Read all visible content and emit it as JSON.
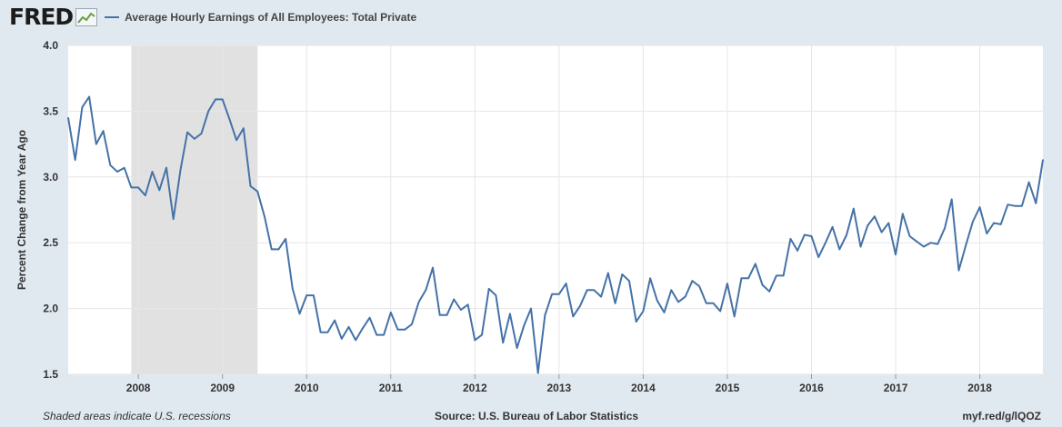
{
  "header": {
    "logo_text": "FRED",
    "legend_label": "Average Hourly Earnings of All Employees: Total Private"
  },
  "footer": {
    "left": "Shaded areas indicate U.S. recessions",
    "center": "Source: U.S. Bureau of Labor Statistics",
    "right": "myf.red/g/lQOZ"
  },
  "colors": {
    "line": "#4572a7",
    "recession_shade": "#e1e1e1",
    "plot_background": "#ffffff",
    "page_background": "#e1e9f0",
    "gridline": "#e6e6e6"
  },
  "chart_data": {
    "type": "line",
    "title": "",
    "xlabel": "",
    "ylabel": "Percent Change from Year Ago",
    "ylim": [
      1.5,
      4.0
    ],
    "xlim": [
      "2007-03",
      "2018-10"
    ],
    "yticks": [
      1.5,
      2.0,
      2.5,
      3.0,
      3.5,
      4.0
    ],
    "ytick_labels": [
      "1.5",
      "2.0",
      "2.5",
      "3.0",
      "3.5",
      "4.0"
    ],
    "xticks": [
      "2008-01",
      "2009-01",
      "2010-01",
      "2011-01",
      "2012-01",
      "2013-01",
      "2014-01",
      "2015-01",
      "2016-01",
      "2017-01",
      "2018-01"
    ],
    "xtick_labels": [
      "2008",
      "2009",
      "2010",
      "2011",
      "2012",
      "2013",
      "2014",
      "2015",
      "2016",
      "2017",
      "2018"
    ],
    "grid": true,
    "legend": "top-left",
    "recessions": [
      {
        "start": "2007-12",
        "end": "2009-06"
      }
    ],
    "series": [
      {
        "name": "Average Hourly Earnings of All Employees: Total Private",
        "x": [
          "2007-03",
          "2007-04",
          "2007-05",
          "2007-06",
          "2007-07",
          "2007-08",
          "2007-09",
          "2007-10",
          "2007-11",
          "2007-12",
          "2008-01",
          "2008-02",
          "2008-03",
          "2008-04",
          "2008-05",
          "2008-06",
          "2008-07",
          "2008-08",
          "2008-09",
          "2008-10",
          "2008-11",
          "2008-12",
          "2009-01",
          "2009-02",
          "2009-03",
          "2009-04",
          "2009-05",
          "2009-06",
          "2009-07",
          "2009-08",
          "2009-09",
          "2009-10",
          "2009-11",
          "2009-12",
          "2010-01",
          "2010-02",
          "2010-03",
          "2010-04",
          "2010-05",
          "2010-06",
          "2010-07",
          "2010-08",
          "2010-09",
          "2010-10",
          "2010-11",
          "2010-12",
          "2011-01",
          "2011-02",
          "2011-03",
          "2011-04",
          "2011-05",
          "2011-06",
          "2011-07",
          "2011-08",
          "2011-09",
          "2011-10",
          "2011-11",
          "2011-12",
          "2012-01",
          "2012-02",
          "2012-03",
          "2012-04",
          "2012-05",
          "2012-06",
          "2012-07",
          "2012-08",
          "2012-09",
          "2012-10",
          "2012-11",
          "2012-12",
          "2013-01",
          "2013-02",
          "2013-03",
          "2013-04",
          "2013-05",
          "2013-06",
          "2013-07",
          "2013-08",
          "2013-09",
          "2013-10",
          "2013-11",
          "2013-12",
          "2014-01",
          "2014-02",
          "2014-03",
          "2014-04",
          "2014-05",
          "2014-06",
          "2014-07",
          "2014-08",
          "2014-09",
          "2014-10",
          "2014-11",
          "2014-12",
          "2015-01",
          "2015-02",
          "2015-03",
          "2015-04",
          "2015-05",
          "2015-06",
          "2015-07",
          "2015-08",
          "2015-09",
          "2015-10",
          "2015-11",
          "2015-12",
          "2016-01",
          "2016-02",
          "2016-03",
          "2016-04",
          "2016-05",
          "2016-06",
          "2016-07",
          "2016-08",
          "2016-09",
          "2016-10",
          "2016-11",
          "2016-12",
          "2017-01",
          "2017-02",
          "2017-03",
          "2017-04",
          "2017-05",
          "2017-06",
          "2017-07",
          "2017-08",
          "2017-09",
          "2017-10",
          "2017-11",
          "2017-12",
          "2018-01",
          "2018-02",
          "2018-03",
          "2018-04",
          "2018-05",
          "2018-06",
          "2018-07",
          "2018-08",
          "2018-09",
          "2018-10"
        ],
        "values": [
          3.45,
          3.13,
          3.53,
          3.61,
          3.25,
          3.35,
          3.09,
          3.04,
          3.07,
          2.92,
          2.92,
          2.86,
          3.04,
          2.9,
          3.07,
          2.68,
          3.05,
          3.34,
          3.29,
          3.33,
          3.5,
          3.59,
          3.59,
          3.44,
          3.28,
          3.37,
          2.93,
          2.89,
          2.7,
          2.45,
          2.45,
          2.53,
          2.15,
          1.96,
          2.1,
          2.1,
          1.82,
          1.82,
          1.91,
          1.77,
          1.86,
          1.76,
          1.85,
          1.93,
          1.8,
          1.8,
          1.97,
          1.84,
          1.84,
          1.88,
          2.05,
          2.14,
          2.31,
          1.95,
          1.95,
          2.07,
          1.99,
          2.03,
          1.76,
          1.8,
          2.15,
          2.1,
          1.74,
          1.96,
          1.7,
          1.87,
          2.0,
          1.51,
          1.95,
          2.11,
          2.11,
          2.19,
          1.94,
          2.02,
          2.14,
          2.14,
          2.09,
          2.27,
          2.04,
          2.26,
          2.21,
          1.9,
          1.98,
          2.23,
          2.06,
          1.97,
          2.14,
          2.05,
          2.09,
          2.21,
          2.17,
          2.04,
          2.04,
          1.98,
          2.19,
          1.94,
          2.23,
          2.23,
          2.34,
          2.18,
          2.13,
          2.25,
          2.25,
          2.53,
          2.44,
          2.56,
          2.55,
          2.39,
          2.5,
          2.62,
          2.45,
          2.56,
          2.76,
          2.47,
          2.63,
          2.7,
          2.58,
          2.65,
          2.41,
          2.72,
          2.55,
          2.51,
          2.47,
          2.5,
          2.49,
          2.61,
          2.83,
          2.29,
          2.48,
          2.66,
          2.77,
          2.57,
          2.65,
          2.64,
          2.79,
          2.78,
          2.78,
          2.96,
          2.8,
          3.13
        ]
      }
    ]
  }
}
